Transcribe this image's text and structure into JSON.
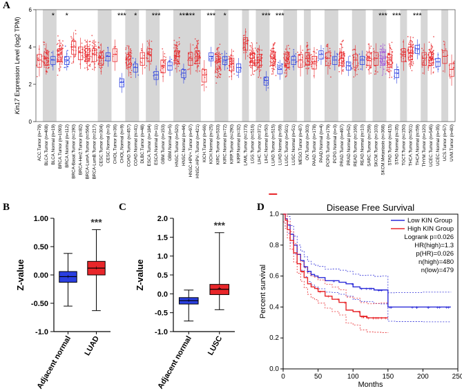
{
  "panels": {
    "a": "A",
    "b": "B",
    "c": "C",
    "d": "D"
  },
  "chart_data": [
    {
      "panel": "A",
      "type": "box",
      "ylabel_italic": "Kin17",
      "ylabel_rest": " Expression Level (log2 TPM)",
      "ylim": [
        0,
        6
      ],
      "yticks": [
        "0",
        "2",
        "4",
        "6"
      ],
      "categories": [
        "ACC.Tumor (n=79)",
        "BLCA.Tumor (n=408)",
        "BLCA.Normal (n=19)",
        "BRCA.Tumor (n=1093)",
        "BRCA.Normal (n=112)",
        "BRCA-Basal.Tumor (n=190)",
        "BRCA-Her2.Tumor (n=82)",
        "BRCA-LumA.Tumor (n=564)",
        "BRCA-LumB.Tumor (n=217)",
        "CESC.Tumor (n=304)",
        "CESC.Normal (n=3)",
        "CHOL.Tumor (n=36)",
        "CHOL.Normal (n=9)",
        "COAD.Tumor (n=457)",
        "COAD.Normal (n=41)",
        "DLBC.Tumor (n=48)",
        "ESCA.Tumor (n=184)",
        "ESCA.Normal (n=11)",
        "GBM.Tumor (n=153)",
        "GBM.Normal (n=5)",
        "HNSC.Tumor (n=520)",
        "HNSC.Normal (n=44)",
        "HNSC-HPV+.Tumor (n=97)",
        "HNSC-HPV-.Tumor (n=421)",
        "KICH.Tumor (n=66)",
        "KICH.Normal (n=25)",
        "KIRC.Tumor (n=533)",
        "KIRC.Normal (n=72)",
        "KIRP.Tumor (n=290)",
        "KIRP.Normal (n=32)",
        "LAML.Tumor (n=173)",
        "LGG.Tumor (n=516)",
        "LIHC.Tumor (n=371)",
        "LIHC.Normal (n=50)",
        "LUAD.Tumor (n=515)",
        "LUAD.Normal (n=59)",
        "LUSC.Tumor (n=501)",
        "LUSC.Normal (n=51)",
        "MESO.Tumor (n=87)",
        "OV.Tumor (n=303)",
        "PAAD.Tumor (n=178)",
        "PAAD.Normal (n=4)",
        "PCPG.Tumor (n=179)",
        "PCPG.Normal (n=3)",
        "PRAD.Tumor (n=497)",
        "PRAD.Normal (n=52)",
        "READ.Tumor (n=166)",
        "READ.Normal (n=10)",
        "SARC.Tumor (n=259)",
        "SKCM.Tumor (n=103)",
        "SKCM.Metastasis (n=368)",
        "STAD.Tumor (n=415)",
        "STAD.Normal (n=35)",
        "TGCT.Tumor (n=150)",
        "THCA.Tumor (n=501)",
        "THCA.Normal (n=59)",
        "THYM.Tumor (n=120)",
        "UCEC.Tumor (n=545)",
        "UCEC.Normal (n=35)",
        "UCS.Tumor (n=57)",
        "UVM.Tumor (n=80)"
      ],
      "medians": [
        3.3,
        3.4,
        3.3,
        3.6,
        3.3,
        4.0,
        3.7,
        3.6,
        3.6,
        3.4,
        3.5,
        3.6,
        2.1,
        3.3,
        2.9,
        3.4,
        3.6,
        2.5,
        3.0,
        3.0,
        3.5,
        2.6,
        3.4,
        3.5,
        2.5,
        3.5,
        3.2,
        3.3,
        3.1,
        2.9,
        4.2,
        3.4,
        3.3,
        2.2,
        3.4,
        2.8,
        3.3,
        3.3,
        3.3,
        3.4,
        3.2,
        3.6,
        3.4,
        3.3,
        3.4,
        3.0,
        3.3,
        3.3,
        3.4,
        3.4,
        3.4,
        3.3,
        2.6,
        3.6,
        3.7,
        3.9,
        3.4,
        3.4,
        3.2,
        3.5,
        2.8
      ],
      "tumor_color": "#e8262a",
      "normal_color": "#2a3fe0",
      "metastasis_color": "#a050d8",
      "significance_marks": [
        {
          "category": "BLCA.Normal (n=19)",
          "label": "*"
        },
        {
          "category": "BRCA.Normal (n=112)",
          "label": "*"
        },
        {
          "category": "CHOL.Normal (n=9)",
          "label": "***"
        },
        {
          "category": "COAD.Normal (n=41)",
          "label": "*"
        },
        {
          "category": "ESCA.Normal (n=11)",
          "label": "***"
        },
        {
          "category": "HNSC.Normal (n=44)",
          "label": "***"
        },
        {
          "category": "HNSC-HPV+.Tumor (n=97)",
          "label": "***"
        },
        {
          "category": "KICH.Normal (n=25)",
          "label": "***"
        },
        {
          "category": "KIRC.Normal (n=72)",
          "label": "*"
        },
        {
          "category": "LIHC.Normal (n=50)",
          "label": "***"
        },
        {
          "category": "LUAD.Normal (n=59)",
          "label": "***"
        },
        {
          "category": "SKCM.Metastasis (n=368)",
          "label": "***"
        },
        {
          "category": "STAD.Normal (n=35)",
          "label": "***"
        },
        {
          "category": "THCA.Normal (n=59)",
          "label": "***"
        }
      ],
      "highlight_underline": "LUAD.Tumor (n=515)"
    },
    {
      "panel": "B",
      "type": "box",
      "ylabel": "Z-value",
      "ylim": [
        -1.0,
        1.0
      ],
      "yticks": [
        "1.00",
        "0.50",
        "0.00",
        "-0.50",
        "-1.0"
      ],
      "categories": [
        "Adjacent normal",
        "LUAD"
      ],
      "boxes": [
        {
          "min": -0.55,
          "q1": -0.13,
          "median": -0.03,
          "q3": 0.06,
          "max": 0.38,
          "mean": -0.03,
          "color": "#2a3fe0"
        },
        {
          "min": -0.63,
          "q1": 0.0,
          "median": 0.12,
          "q3": 0.24,
          "max": 0.8,
          "mean": 0.12,
          "color": "#e8262a"
        }
      ],
      "significance": "***"
    },
    {
      "panel": "C",
      "type": "box",
      "ylabel": "Z-value",
      "ylim": [
        -1.0,
        2.0
      ],
      "yticks": [
        "2.0",
        "1.5",
        "1.0",
        "0.5",
        "0.0",
        "-0.5",
        "-1.0"
      ],
      "categories": [
        "Adjacent normal",
        "LUSC"
      ],
      "boxes": [
        {
          "min": -0.72,
          "q1": -0.27,
          "median": -0.18,
          "q3": -0.1,
          "max": 0.1,
          "mean": -0.18,
          "color": "#2a3fe0"
        },
        {
          "min": -0.42,
          "q1": -0.02,
          "median": 0.12,
          "q3": 0.25,
          "max": 1.62,
          "mean": 0.14,
          "color": "#e8262a"
        }
      ],
      "significance": "***"
    },
    {
      "panel": "D",
      "type": "line",
      "title": "Disease Free Survival",
      "xlabel": "Months",
      "ylabel": "Percent survival",
      "xlim": [
        0,
        250
      ],
      "ylim": [
        0,
        1.0
      ],
      "xticks": [
        "0",
        "50",
        "100",
        "150",
        "200",
        "250"
      ],
      "yticks": [
        "0.0",
        "0.2",
        "0.4",
        "0.6",
        "0.8",
        "1.0"
      ],
      "series": [
        {
          "name": "Low KIN Group",
          "color": "#2a2ad8",
          "x": [
            0,
            3,
            6,
            10,
            15,
            20,
            25,
            30,
            35,
            40,
            45,
            50,
            60,
            70,
            80,
            90,
            100,
            110,
            120,
            130,
            140,
            150,
            160,
            200,
            240
          ],
          "y": [
            1.0,
            0.97,
            0.93,
            0.87,
            0.8,
            0.74,
            0.7,
            0.66,
            0.63,
            0.61,
            0.6,
            0.59,
            0.57,
            0.57,
            0.56,
            0.55,
            0.53,
            0.52,
            0.52,
            0.51,
            0.51,
            0.4,
            0.4,
            0.4,
            0.4
          ]
        },
        {
          "name": "High KIN Group",
          "color": "#e8262a",
          "x": [
            0,
            3,
            6,
            10,
            15,
            20,
            25,
            30,
            35,
            40,
            45,
            50,
            60,
            70,
            80,
            90,
            100,
            110,
            120,
            130,
            140,
            150
          ],
          "y": [
            1.0,
            0.96,
            0.9,
            0.83,
            0.75,
            0.68,
            0.63,
            0.59,
            0.55,
            0.53,
            0.52,
            0.5,
            0.47,
            0.45,
            0.43,
            0.38,
            0.37,
            0.34,
            0.33,
            0.33,
            0.33,
            0.33
          ]
        }
      ],
      "stats": [
        "Logrank p=0.026",
        "HR(high)=1.3",
        "p(HR)=0.026",
        "n(high)=480",
        "n(low)=479"
      ]
    }
  ]
}
